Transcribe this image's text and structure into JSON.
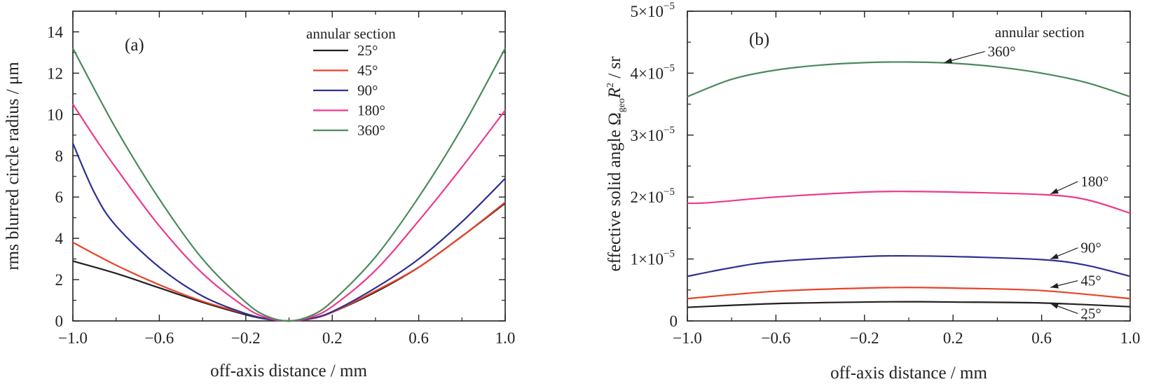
{
  "chart_data": [
    {
      "id": "a",
      "type": "line",
      "panel_label": "(a)",
      "xlabel": "off-axis distance / mm",
      "ylabel": "rms blurred circle radius / μm",
      "xlim": [
        -1.0,
        1.0
      ],
      "ylim": [
        0,
        15
      ],
      "xticks": [
        {
          "value": -1.0,
          "label": "−1.0"
        },
        {
          "value": -0.6,
          "label": "−0.6"
        },
        {
          "value": -0.2,
          "label": "−0.2"
        },
        {
          "value": 0.2,
          "label": "0.2"
        },
        {
          "value": 0.6,
          "label": "0.6"
        },
        {
          "value": 1.0,
          "label": "1.0"
        }
      ],
      "yticks": [
        {
          "value": 0,
          "label": "0"
        },
        {
          "value": 2,
          "label": "2"
        },
        {
          "value": 4,
          "label": "4"
        },
        {
          "value": 6,
          "label": "6"
        },
        {
          "value": 8,
          "label": "8"
        },
        {
          "value": 10,
          "label": "10"
        },
        {
          "value": 12,
          "label": "12"
        },
        {
          "value": 14,
          "label": "14"
        }
      ],
      "legend_title": "annular section",
      "legend_position": "top-right",
      "series": [
        {
          "name": "25°",
          "color": "#231f20",
          "x": [
            -1.0,
            -0.8,
            -0.6,
            -0.4,
            -0.2,
            -0.1,
            0.0,
            0.1,
            0.2,
            0.4,
            0.6,
            0.8,
            1.0
          ],
          "y": [
            2.9,
            2.3,
            1.6,
            0.9,
            0.3,
            0.08,
            0.0,
            0.1,
            0.42,
            1.4,
            2.6,
            4.1,
            5.7
          ]
        },
        {
          "name": "45°",
          "color": "#e8432b",
          "x": [
            -1.0,
            -0.8,
            -0.6,
            -0.4,
            -0.2,
            -0.1,
            0.0,
            0.1,
            0.2,
            0.4,
            0.6,
            0.8,
            1.0
          ],
          "y": [
            3.8,
            2.7,
            1.75,
            0.95,
            0.35,
            0.09,
            0.0,
            0.1,
            0.42,
            1.45,
            2.6,
            4.1,
            5.75
          ]
        },
        {
          "name": "90°",
          "color": "#2e3192",
          "x": [
            -1.0,
            -0.9,
            -0.8,
            -0.6,
            -0.4,
            -0.2,
            -0.1,
            0.0,
            0.1,
            0.2,
            0.4,
            0.6,
            0.8,
            1.0
          ],
          "y": [
            8.6,
            6.2,
            4.6,
            2.6,
            1.2,
            0.35,
            0.1,
            0.0,
            0.12,
            0.45,
            1.6,
            3.0,
            4.8,
            6.9
          ]
        },
        {
          "name": "180°",
          "color": "#ec3a8c",
          "x": [
            -1.0,
            -0.9,
            -0.8,
            -0.6,
            -0.4,
            -0.2,
            -0.1,
            0.0,
            0.1,
            0.2,
            0.4,
            0.6,
            0.8,
            1.0
          ],
          "y": [
            10.5,
            8.9,
            7.4,
            4.6,
            2.3,
            0.65,
            0.15,
            0.0,
            0.18,
            0.7,
            2.45,
            4.85,
            7.45,
            10.2
          ]
        },
        {
          "name": "360°",
          "color": "#4a8a5c",
          "x": [
            -1.0,
            -0.8,
            -0.6,
            -0.4,
            -0.2,
            -0.1,
            0.0,
            0.1,
            0.2,
            0.4,
            0.6,
            0.8,
            1.0
          ],
          "y": [
            13.2,
            9.3,
            5.9,
            3.0,
            0.9,
            0.22,
            0.0,
            0.25,
            0.95,
            3.1,
            6.0,
            9.35,
            13.2
          ]
        }
      ]
    },
    {
      "id": "b",
      "type": "line",
      "panel_label": "(b)",
      "xlabel": "off-axis distance / mm",
      "ylabel": "effective solid angle Ω",
      "ylabel_sub": "geo",
      "ylabel_tail": "R",
      "ylabel_sup": "2",
      "ylabel_unit": " / sr",
      "xlim": [
        -1.0,
        1.0
      ],
      "ylim": [
        0,
        5e-05
      ],
      "xticks": [
        {
          "value": -1.0,
          "label": "−1.0"
        },
        {
          "value": -0.6,
          "label": "−0.6"
        },
        {
          "value": -0.2,
          "label": "−0.2"
        },
        {
          "value": 0.2,
          "label": "0.2"
        },
        {
          "value": 0.6,
          "label": "0.6"
        },
        {
          "value": 1.0,
          "label": "1.0"
        }
      ],
      "yticks": [
        {
          "value": 0,
          "mantissa": "0",
          "exp": ""
        },
        {
          "value": 1e-05,
          "mantissa": "1×10",
          "exp": "−5"
        },
        {
          "value": 2e-05,
          "mantissa": "2×10",
          "exp": "−5"
        },
        {
          "value": 3e-05,
          "mantissa": "3×10",
          "exp": "−5"
        },
        {
          "value": 4e-05,
          "mantissa": "4×10",
          "exp": "−5"
        },
        {
          "value": 5e-05,
          "mantissa": "5×10",
          "exp": "−5"
        }
      ],
      "legend_title": "annular section",
      "series": [
        {
          "name": "25°",
          "color": "#231f20",
          "x": [
            -1.0,
            -0.6,
            -0.2,
            0.0,
            0.2,
            0.6,
            1.0
          ],
          "y": [
            2.2e-06,
            2.8e-06,
            3.05e-06,
            3.1e-06,
            3.05e-06,
            2.9e-06,
            2.3e-06
          ]
        },
        {
          "name": "45°",
          "color": "#e8432b",
          "x": [
            -1.0,
            -0.6,
            -0.2,
            0.0,
            0.2,
            0.6,
            1.0
          ],
          "y": [
            3.6e-06,
            4.8e-06,
            5.3e-06,
            5.4e-06,
            5.3e-06,
            4.9e-06,
            3.6e-06
          ]
        },
        {
          "name": "90°",
          "color": "#2e3192",
          "x": [
            -1.0,
            -0.8,
            -0.6,
            -0.2,
            0.0,
            0.2,
            0.6,
            0.8,
            1.0
          ],
          "y": [
            7.2e-06,
            8.6e-06,
            9.6e-06,
            1.04e-05,
            1.05e-05,
            1.04e-05,
            9.9e-06,
            9e-06,
            7.2e-06
          ]
        },
        {
          "name": "180°",
          "color": "#ec3a8c",
          "x": [
            -1.0,
            -0.9,
            -0.6,
            -0.2,
            0.0,
            0.2,
            0.6,
            0.8,
            1.0
          ],
          "y": [
            1.9e-05,
            1.91e-05,
            2e-05,
            2.08e-05,
            2.09e-05,
            2.08e-05,
            2.04e-05,
            1.96e-05,
            1.74e-05
          ]
        },
        {
          "name": "360°",
          "color": "#4a8a5c",
          "x": [
            -1.0,
            -0.8,
            -0.6,
            -0.4,
            -0.2,
            0.0,
            0.2,
            0.4,
            0.6,
            0.8,
            1.0
          ],
          "y": [
            3.62e-05,
            3.9e-05,
            4.05e-05,
            4.13e-05,
            4.17e-05,
            4.18e-05,
            4.16e-05,
            4.1e-05,
            4e-05,
            3.85e-05,
            3.62e-05
          ]
        }
      ],
      "annotations": [
        {
          "text": "360°",
          "series": "360°",
          "point_x": 0.16,
          "point_y": 4.17e-05,
          "label_x": 0.35,
          "label_y": 4.35e-05
        },
        {
          "text": "180°",
          "series": "180°",
          "point_x": 0.64,
          "point_y": 2.05e-05,
          "label_x": 0.77,
          "label_y": 2.25e-05
        },
        {
          "text": "90°",
          "series": "90°",
          "point_x": 0.64,
          "point_y": 1e-05,
          "label_x": 0.77,
          "label_y": 1.18e-05
        },
        {
          "text": "45°",
          "series": "45°",
          "point_x": 0.64,
          "point_y": 5.4e-06,
          "label_x": 0.77,
          "label_y": 6.5e-06
        },
        {
          "text": "25°",
          "series": "25°",
          "point_x": 0.64,
          "point_y": 2.8e-06,
          "label_x": 0.77,
          "label_y": 1.2e-06
        }
      ]
    }
  ]
}
